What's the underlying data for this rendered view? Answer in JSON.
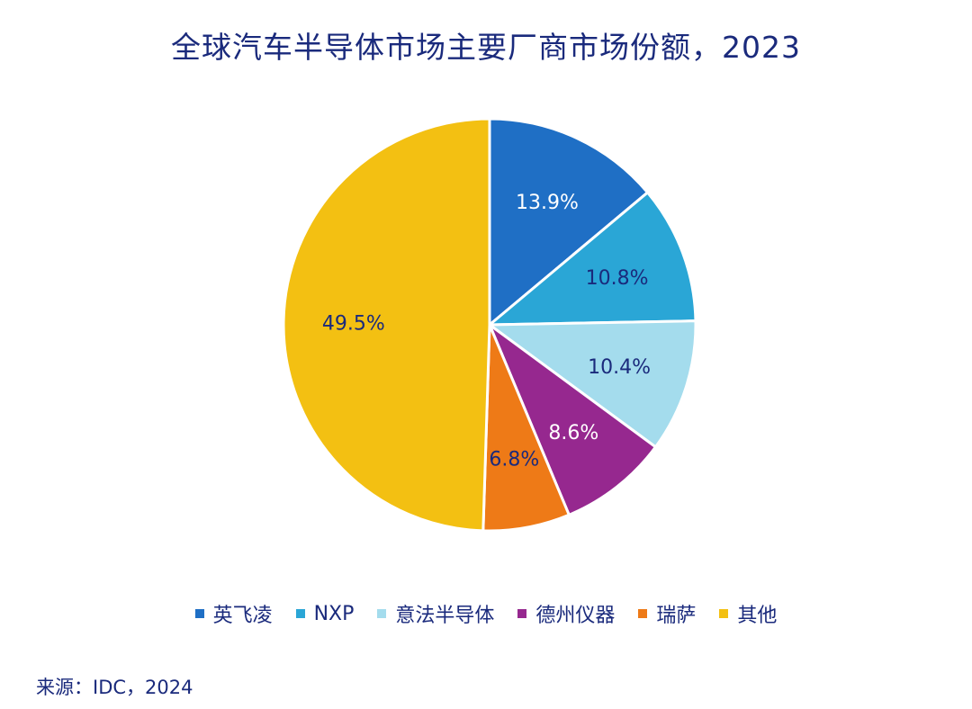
{
  "title": "全球汽车半导体市场主要厂商市场份额，2023",
  "source": "来源：IDC，2024",
  "chart_data": {
    "type": "pie",
    "title": "全球汽车半导体市场主要厂商市场份额，2023",
    "legend_position": "bottom",
    "slices": [
      {
        "name": "英飞凌",
        "value": 13.9,
        "label": "13.9%",
        "color": "#1f6fc5",
        "label_color": "#ffffff"
      },
      {
        "name": "NXP",
        "value": 10.8,
        "label": "10.8%",
        "color": "#2aa6d6",
        "label_color": "#1a2a7c"
      },
      {
        "name": "意法半导体",
        "value": 10.4,
        "label": "10.4%",
        "color": "#a4dced",
        "label_color": "#1a2a7c"
      },
      {
        "name": "德州仪器",
        "value": 8.6,
        "label": "8.6%",
        "color": "#96288f",
        "label_color": "#ffffff"
      },
      {
        "name": "瑞萨",
        "value": 6.8,
        "label": "6.8%",
        "color": "#ee7a17",
        "label_color": "#1a2a7c"
      },
      {
        "name": "其他",
        "value": 49.5,
        "label": "49.5%",
        "color": "#f3c012",
        "label_color": "#1a2a7c"
      }
    ]
  }
}
